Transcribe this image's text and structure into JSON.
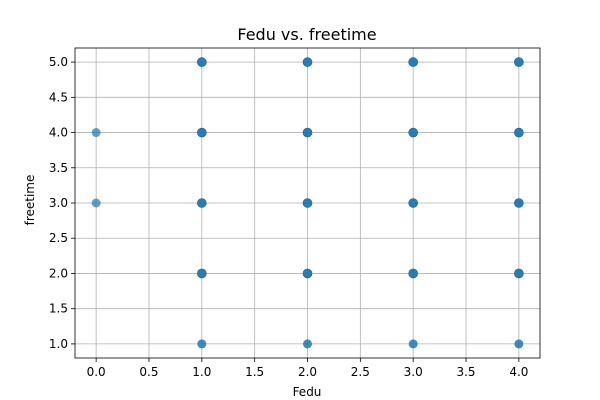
{
  "chart_data": {
    "type": "scatter",
    "title": "Fedu vs. freetime",
    "xlabel": "Fedu",
    "ylabel": "freetime",
    "xlim": [
      -0.2,
      4.2
    ],
    "ylim": [
      0.8,
      5.2
    ],
    "xticks": [
      0.0,
      0.5,
      1.0,
      1.5,
      2.0,
      2.5,
      3.0,
      3.5,
      4.0
    ],
    "xtick_labels": [
      "0.0",
      "0.5",
      "1.0",
      "1.5",
      "2.0",
      "2.5",
      "3.0",
      "3.5",
      "4.0"
    ],
    "yticks": [
      1.0,
      1.5,
      2.0,
      2.5,
      3.0,
      3.5,
      4.0,
      4.5,
      5.0
    ],
    "ytick_labels": [
      "1.0",
      "1.5",
      "2.0",
      "2.5",
      "3.0",
      "3.5",
      "4.0",
      "4.5",
      "5.0"
    ],
    "grid": true,
    "marker_color": "#1f77b4",
    "points": [
      {
        "x": 0,
        "y": 3,
        "density": "light"
      },
      {
        "x": 0,
        "y": 4,
        "density": "light"
      },
      {
        "x": 1,
        "y": 1,
        "density": "medium"
      },
      {
        "x": 1,
        "y": 2,
        "density": "dense"
      },
      {
        "x": 1,
        "y": 3,
        "density": "dense"
      },
      {
        "x": 1,
        "y": 4,
        "density": "dense"
      },
      {
        "x": 1,
        "y": 5,
        "density": "dense"
      },
      {
        "x": 2,
        "y": 1,
        "density": "medium"
      },
      {
        "x": 2,
        "y": 2,
        "density": "dense"
      },
      {
        "x": 2,
        "y": 3,
        "density": "dense"
      },
      {
        "x": 2,
        "y": 4,
        "density": "dense"
      },
      {
        "x": 2,
        "y": 5,
        "density": "dense"
      },
      {
        "x": 3,
        "y": 1,
        "density": "medium"
      },
      {
        "x": 3,
        "y": 2,
        "density": "dense"
      },
      {
        "x": 3,
        "y": 3,
        "density": "dense"
      },
      {
        "x": 3,
        "y": 4,
        "density": "dense"
      },
      {
        "x": 3,
        "y": 5,
        "density": "dense"
      },
      {
        "x": 4,
        "y": 1,
        "density": "medium"
      },
      {
        "x": 4,
        "y": 2,
        "density": "dense"
      },
      {
        "x": 4,
        "y": 3,
        "density": "dense"
      },
      {
        "x": 4,
        "y": 4,
        "density": "dense"
      },
      {
        "x": 4,
        "y": 5,
        "density": "dense"
      }
    ]
  }
}
